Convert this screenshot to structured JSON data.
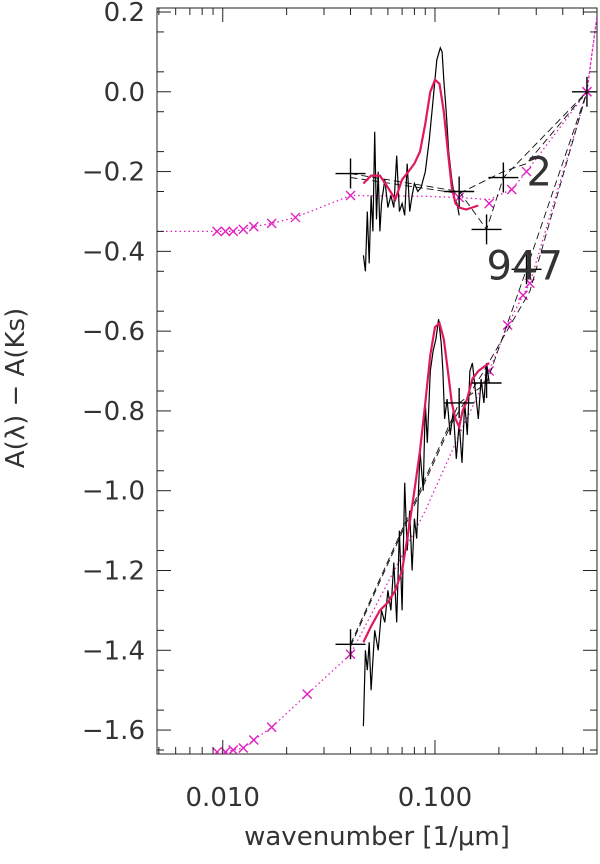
{
  "chart_data": {
    "type": "line",
    "xlabel": "wavenumber [1/μm]",
    "ylabel": "A(λ) − A(Ks)",
    "xscale": "log",
    "xlim": [
      0.0049,
      0.58
    ],
    "ylim": [
      -1.66,
      0.21
    ],
    "grid": false,
    "legend": "none",
    "x_ticks": [
      {
        "value": 0.01,
        "label": "0.010"
      },
      {
        "value": 0.1,
        "label": "0.100"
      }
    ],
    "y_ticks": [
      {
        "value": 0.2,
        "label": "0.2"
      },
      {
        "value": 0.0,
        "label": "0.0"
      },
      {
        "value": -0.2,
        "label": "−0.2"
      },
      {
        "value": -0.4,
        "label": "−0.4"
      },
      {
        "value": -0.6,
        "label": "−0.6"
      },
      {
        "value": -0.8,
        "label": "−0.8"
      },
      {
        "value": -1.0,
        "label": "−1.0"
      },
      {
        "value": -1.2,
        "label": "−1.2"
      },
      {
        "value": -1.4,
        "label": "−1.4"
      },
      {
        "value": -1.6,
        "label": "−1.6"
      }
    ],
    "annotations": [
      {
        "text": "2",
        "x": 0.27,
        "y": -0.2
      },
      {
        "text": "947",
        "x": 0.175,
        "y": -0.435
      }
    ],
    "colors": {
      "spectrum": "#000000",
      "model": "#e0185f",
      "markers": "#e020c0",
      "photometry": "#000000"
    },
    "series": [
      {
        "kind": "magenta-dotted",
        "x": [
          0.0049,
          0.0094,
          0.0103,
          0.0112,
          0.0125,
          0.014,
          0.017,
          0.022,
          0.04,
          0.09,
          0.13,
          0.18,
          0.23,
          0.27,
          0.52,
          0.58
        ],
        "y": [
          -0.35,
          -0.35,
          -0.35,
          -0.35,
          -0.345,
          -0.338,
          -0.33,
          -0.315,
          -0.26,
          -0.262,
          -0.265,
          -0.27,
          -0.245,
          -0.2,
          0.0,
          0.19
        ]
      },
      {
        "kind": "magenta-dotted",
        "x": [
          0.0094,
          0.0103,
          0.0112,
          0.0125,
          0.014,
          0.017,
          0.025,
          0.04,
          0.09,
          0.13,
          0.18,
          0.22,
          0.26,
          0.28,
          0.52,
          0.58
        ],
        "y": [
          -1.655,
          -1.655,
          -1.65,
          -1.645,
          -1.625,
          -1.593,
          -1.51,
          -1.41,
          -1.05,
          -0.86,
          -0.7,
          -0.585,
          -0.51,
          -0.48,
          0.0,
          0.19
        ]
      },
      {
        "kind": "markers",
        "x": [
          0.0094,
          0.0103,
          0.0112,
          0.0125,
          0.014,
          0.017,
          0.022,
          0.04,
          0.13,
          0.18,
          0.23,
          0.27,
          0.52
        ],
        "y": [
          -0.35,
          -0.35,
          -0.35,
          -0.345,
          -0.338,
          -0.33,
          -0.315,
          -0.26,
          -0.265,
          -0.28,
          -0.245,
          -0.2,
          0.0
        ]
      },
      {
        "kind": "markers",
        "x": [
          0.0094,
          0.0103,
          0.0112,
          0.0125,
          0.014,
          0.017,
          0.025,
          0.04,
          0.18,
          0.22,
          0.26,
          0.28,
          0.52
        ],
        "y": [
          -1.655,
          -1.655,
          -1.65,
          -1.645,
          -1.625,
          -1.593,
          -1.51,
          -1.41,
          -0.7,
          -0.585,
          -0.51,
          -0.48,
          0.0
        ]
      },
      {
        "kind": "black-dashed",
        "x": [
          0.04,
          0.13,
          0.175,
          0.21,
          0.52
        ],
        "y": [
          -0.205,
          -0.25,
          -0.345,
          -0.215,
          0.0
        ]
      },
      {
        "kind": "black-dashed",
        "x": [
          0.04,
          0.13,
          0.21,
          0.27,
          0.52
        ],
        "y": [
          -0.215,
          -0.255,
          -0.2,
          -0.18,
          0.0
        ]
      },
      {
        "kind": "black-dashed",
        "x": [
          0.04,
          0.13,
          0.175,
          0.27,
          0.52
        ],
        "y": [
          -1.385,
          -0.78,
          -0.73,
          -0.445,
          0.0
        ]
      },
      {
        "kind": "black-dashed",
        "x": [
          0.04,
          0.12,
          0.17,
          0.28,
          0.52
        ],
        "y": [
          -1.39,
          -0.83,
          -0.7,
          -0.5,
          0.0
        ]
      },
      {
        "kind": "spectrum",
        "x": [
          0.046,
          0.047,
          0.048,
          0.049,
          0.05,
          0.051,
          0.052,
          0.053,
          0.054,
          0.055,
          0.056,
          0.058,
          0.06,
          0.062,
          0.064,
          0.066,
          0.068,
          0.07,
          0.072,
          0.074,
          0.076,
          0.078,
          0.08,
          0.083,
          0.086,
          0.09,
          0.094,
          0.098,
          0.102,
          0.106,
          0.108,
          0.11,
          0.113,
          0.116,
          0.12,
          0.124,
          0.127,
          0.13
        ],
        "y": [
          -0.41,
          -0.45,
          -0.3,
          -0.43,
          -0.26,
          -0.35,
          -0.1,
          -0.32,
          -0.2,
          -0.35,
          -0.28,
          -0.22,
          -0.29,
          -0.26,
          -0.29,
          -0.16,
          -0.3,
          -0.28,
          -0.31,
          -0.18,
          -0.3,
          -0.26,
          -0.23,
          -0.25,
          -0.24,
          -0.2,
          -0.12,
          -0.02,
          0.08,
          0.11,
          0.1,
          0.03,
          -0.05,
          -0.15,
          -0.22,
          -0.27,
          -0.28,
          -0.31
        ]
      },
      {
        "kind": "spectrum",
        "x": [
          0.046,
          0.047,
          0.048,
          0.049,
          0.05,
          0.052,
          0.054,
          0.056,
          0.058,
          0.06,
          0.062,
          0.064,
          0.066,
          0.068,
          0.07,
          0.072,
          0.074,
          0.076,
          0.078,
          0.08,
          0.082,
          0.085,
          0.088,
          0.09,
          0.092,
          0.095,
          0.098,
          0.101,
          0.104,
          0.107,
          0.109,
          0.111,
          0.114,
          0.118,
          0.122,
          0.126,
          0.13,
          0.134,
          0.138,
          0.142,
          0.146,
          0.15,
          0.155,
          0.16,
          0.165,
          0.17,
          0.175,
          0.18
        ],
        "y": [
          -1.59,
          -1.4,
          -1.45,
          -1.38,
          -1.5,
          -1.35,
          -1.4,
          -1.3,
          -1.33,
          -1.25,
          -1.3,
          -1.18,
          -1.33,
          -1.1,
          -1.3,
          -0.98,
          -1.15,
          -1.05,
          -1.2,
          -1.07,
          -1.12,
          -0.9,
          -1.0,
          -0.78,
          -0.88,
          -0.7,
          -0.65,
          -0.62,
          -0.57,
          -0.63,
          -0.7,
          -0.82,
          -0.77,
          -0.86,
          -0.8,
          -0.92,
          -0.83,
          -0.93,
          -0.78,
          -0.86,
          -0.7,
          -0.68,
          -0.75,
          -0.82,
          -0.72,
          -0.78,
          -0.68,
          -0.73
        ]
      },
      {
        "kind": "model",
        "x": [
          0.046,
          0.05,
          0.055,
          0.06,
          0.065,
          0.07,
          0.075,
          0.08,
          0.085,
          0.09,
          0.095,
          0.1,
          0.105,
          0.11,
          0.115,
          0.12,
          0.125,
          0.13,
          0.14,
          0.15,
          0.16
        ],
        "y": [
          -0.23,
          -0.21,
          -0.21,
          -0.24,
          -0.27,
          -0.22,
          -0.2,
          -0.18,
          -0.15,
          -0.08,
          0.0,
          0.03,
          0.02,
          -0.05,
          -0.15,
          -0.24,
          -0.28,
          -0.29,
          -0.295,
          -0.29,
          -0.285
        ]
      },
      {
        "kind": "model",
        "x": [
          0.046,
          0.05,
          0.055,
          0.06,
          0.065,
          0.07,
          0.075,
          0.08,
          0.085,
          0.09,
          0.095,
          0.1,
          0.105,
          0.11,
          0.115,
          0.12,
          0.125,
          0.13,
          0.135,
          0.14,
          0.145,
          0.15,
          0.16,
          0.18
        ],
        "y": [
          -1.38,
          -1.34,
          -1.3,
          -1.28,
          -1.25,
          -1.2,
          -1.1,
          -1.0,
          -0.9,
          -0.78,
          -0.66,
          -0.59,
          -0.58,
          -0.62,
          -0.7,
          -0.78,
          -0.82,
          -0.84,
          -0.8,
          -0.78,
          -0.75,
          -0.72,
          -0.7,
          -0.68
        ]
      },
      {
        "kind": "cross",
        "x": [
          0.04,
          0.13,
          0.175,
          0.21,
          0.52,
          0.04,
          0.13,
          0.175,
          0.27
        ],
        "y": [
          -0.205,
          -0.25,
          -0.345,
          -0.215,
          0.0,
          -1.385,
          -0.78,
          -0.73,
          -0.445
        ]
      }
    ]
  }
}
